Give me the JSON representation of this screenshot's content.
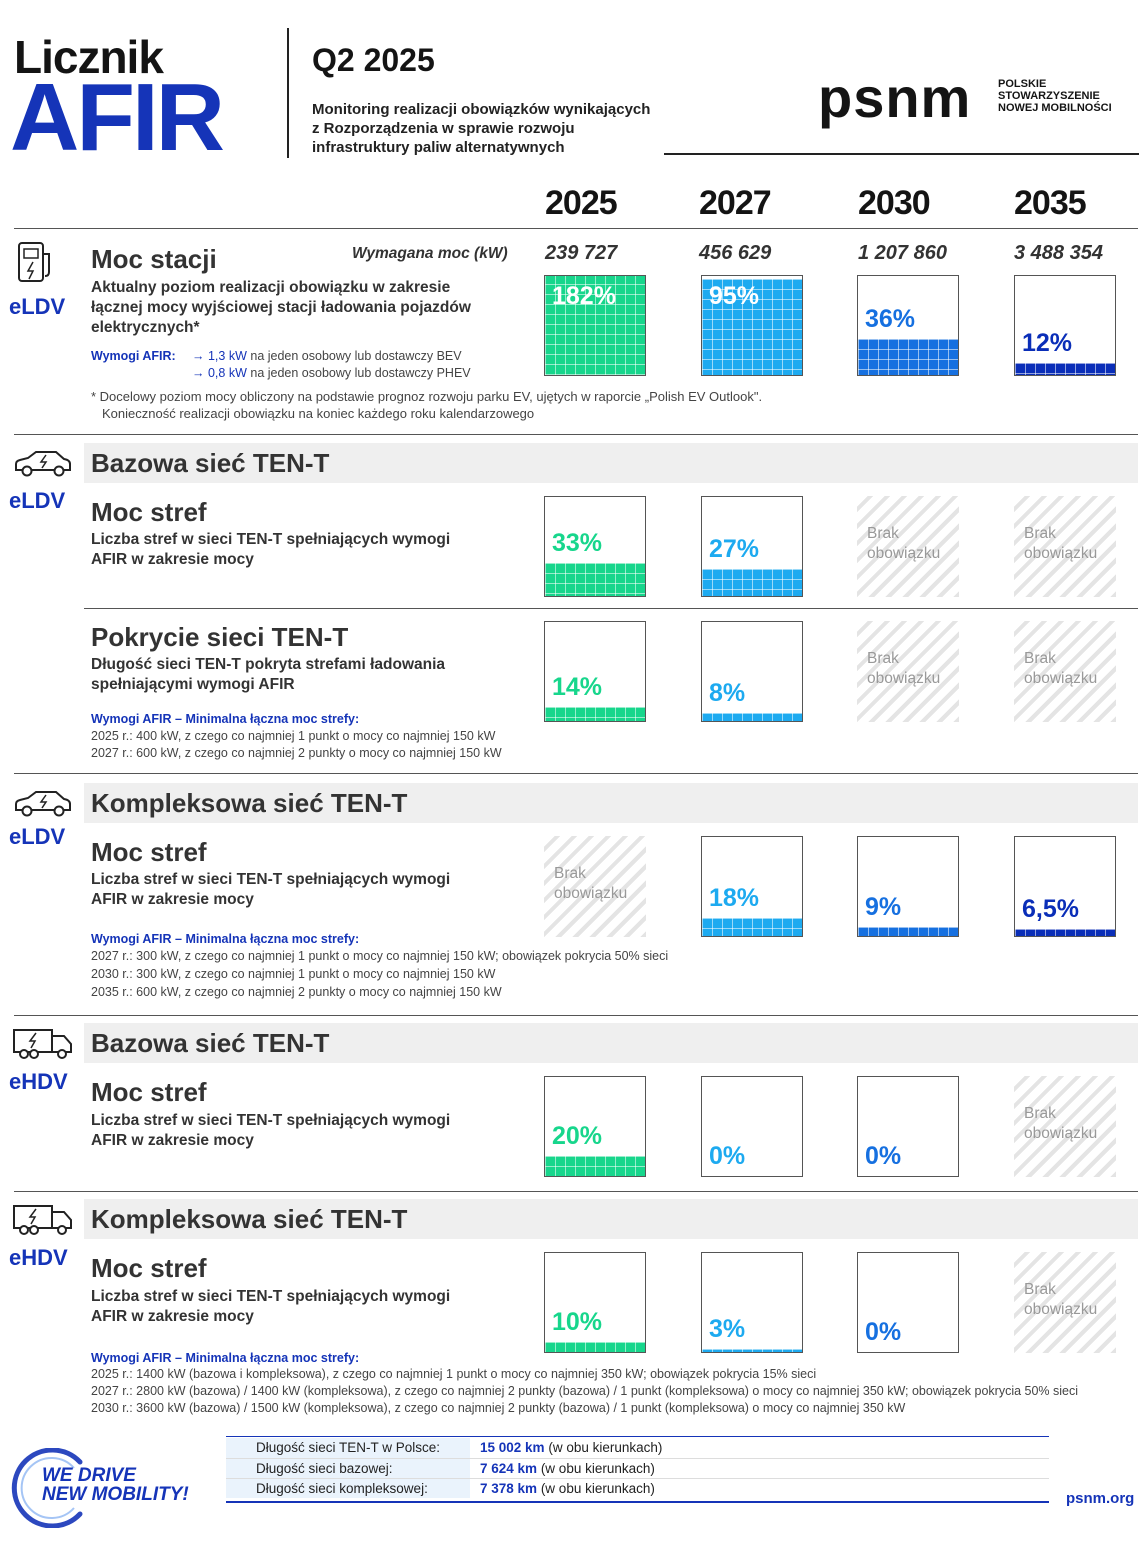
{
  "header": {
    "title_line1": "Licznik",
    "title_line2": "AFIR",
    "quarter": "Q2 2025",
    "subtitle": "Monitoring realizacji obowiązków wynikających z Rozporządzenia w sprawie rozwoju infrastruktury paliw alternatywnych",
    "logo": "psnm",
    "logo_sub": [
      "POLSKIE",
      "STOWARZYSZENIE",
      "NOWEJ MOBILNOŚCI"
    ]
  },
  "years": [
    "2025",
    "2027",
    "2030",
    "2035"
  ],
  "colors": {
    "c2025": "#17d68c",
    "c2027": "#1daaf0",
    "c2030": "#1670e0",
    "c2035": "#0a2eb8",
    "brand": "#1534b8"
  },
  "section_moc_stacji": {
    "category": "eLDV",
    "title": "Moc stacji",
    "required_label": "Wymagana moc (kW)",
    "required_values": [
      "239 727",
      "456 629",
      "1 207 860",
      "3 488 354"
    ],
    "desc": "Aktualny poziom realizacji obowiązku w zakresie łącznej mocy wyjściowej stacji ładowania pojazdów elektrycznych*",
    "req_label": "Wymogi AFIR:",
    "req1_val": "1,3 kW",
    "req1_text": "na jeden osobowy lub dostawczy BEV",
    "req2_val": "0,8 kW",
    "req2_text": "na jeden osobowy lub dostawczy PHEV",
    "note1": "* Docelowy poziom mocy obliczony na podstawie prognoz rozwoju parku EV, ujętych w raporcie „Polish EV Outlook\".",
    "note2": "Konieczność realizacji obowiązku na koniec każdego roku kalendarzowego"
  },
  "band1": {
    "title": "Bazowa sieć TEN-T",
    "category": "eLDV"
  },
  "moc_stref_1": {
    "title": "Moc stref",
    "desc": "Liczba stref w sieci TEN-T spełniających wymogi AFIR w zakresie mocy"
  },
  "pokrycie": {
    "title": "Pokrycie sieci TEN-T",
    "desc": "Długość sieci TEN-T pokryta strefami ładowania spełniającymi wymogi AFIR",
    "req_title": "Wymogi AFIR – Minimalna łączna moc strefy:",
    "req_lines": [
      "2025 r.: 400 kW, z czego co najmniej 1 punkt o mocy co najmniej 150 kW",
      "2027 r.: 600 kW, z czego co najmniej 2 punkty o mocy co najmniej 150 kW"
    ]
  },
  "band2": {
    "title": "Kompleksowa sieć TEN-T",
    "category": "eLDV"
  },
  "moc_stref_2": {
    "title": "Moc stref",
    "desc": "Liczba stref w sieci TEN-T spełniających wymogi AFIR w zakresie mocy",
    "req_title": "Wymogi AFIR – Minimalna łączna moc strefy:",
    "req_lines": [
      "2027 r.: 300 kW, z czego co najmniej 1 punkt o mocy co najmniej 150 kW; obowiązek pokrycia 50% sieci",
      "2030 r.: 300 kW, z czego co najmniej 1 punkt o mocy co najmniej 150 kW",
      "2035 r.: 600 kW, z czego co najmniej 2 punkty o mocy co najmniej 150 kW"
    ]
  },
  "band3": {
    "title": "Bazowa sieć TEN-T",
    "category": "eHDV"
  },
  "moc_stref_3": {
    "title": "Moc stref",
    "desc": "Liczba stref w sieci TEN-T spełniających wymogi AFIR w zakresie mocy"
  },
  "band4": {
    "title": "Kompleksowa sieć TEN-T",
    "category": "eHDV"
  },
  "moc_stref_4": {
    "title": "Moc stref",
    "desc": "Liczba stref w sieci TEN-T spełniających wymogi AFIR w zakresie mocy",
    "req_title": "Wymogi AFIR – Minimalna łączna moc strefy:",
    "req_lines": [
      "2025 r.: 1400 kW (bazowa i kompleksowa), z czego co najmniej 1 punkt o mocy co najmniej 350 kW; obowiązek pokrycia 15% sieci",
      "2027 r.: 2800 kW (bazowa) / 1400 kW (kompleksowa), z czego co najmniej 2 punkty (bazowa) / 1 punkt (kompleksowa) o mocy co najmniej 350 kW; obowiązek pokrycia  50% sieci",
      "2030 r.: 3600 kW (bazowa) / 1500 kW (kompleksowa), z czego co najmniej 2 punkty (bazowa) / 1 punkt (kompleksowa) o mocy co najmniej 350 kW"
    ]
  },
  "no_obligation": "Brak obowiązku",
  "chart_data": [
    {
      "type": "bar",
      "name": "Moc stacji (eLDV)",
      "categories": [
        "2025",
        "2027",
        "2030",
        "2035"
      ],
      "labels": [
        "182%",
        "95%",
        "36%",
        "12%"
      ],
      "values": [
        182,
        95,
        36,
        12
      ]
    },
    {
      "type": "bar",
      "name": "Bazowa sieć TEN-T – Moc stref (eLDV)",
      "categories": [
        "2025",
        "2027",
        "2030",
        "2035"
      ],
      "labels": [
        "33%",
        "27%",
        null,
        null
      ],
      "values": [
        33,
        27,
        null,
        null
      ]
    },
    {
      "type": "bar",
      "name": "Bazowa sieć TEN-T – Pokrycie sieci TEN-T (eLDV)",
      "categories": [
        "2025",
        "2027",
        "2030",
        "2035"
      ],
      "labels": [
        "14%",
        "8%",
        null,
        null
      ],
      "values": [
        14,
        8,
        null,
        null
      ]
    },
    {
      "type": "bar",
      "name": "Kompleksowa sieć TEN-T – Moc stref (eLDV)",
      "categories": [
        "2025",
        "2027",
        "2030",
        "2035"
      ],
      "labels": [
        null,
        "18%",
        "9%",
        "6,5%"
      ],
      "values": [
        null,
        18,
        9,
        6.5
      ]
    },
    {
      "type": "bar",
      "name": "Bazowa sieć TEN-T – Moc stref (eHDV)",
      "categories": [
        "2025",
        "2027",
        "2030",
        "2035"
      ],
      "labels": [
        "20%",
        "0%",
        "0%",
        null
      ],
      "values": [
        20,
        0,
        0,
        null
      ]
    },
    {
      "type": "bar",
      "name": "Kompleksowa sieć TEN-T – Moc stref (eHDV)",
      "categories": [
        "2025",
        "2027",
        "2030",
        "2035"
      ],
      "labels": [
        "10%",
        "3%",
        "0%",
        null
      ],
      "values": [
        10,
        3,
        0,
        null
      ]
    }
  ],
  "footer": {
    "rows": [
      {
        "label": "Długość sieci TEN-T w Polsce:",
        "value": "15 002 km",
        "note": "(w obu kierunkach)"
      },
      {
        "label": "Długość sieci bazowej:",
        "value": "7 624 km",
        "note": "(w obu kierunkach)"
      },
      {
        "label": "Długość sieci kompleksowej:",
        "value": "7 378 km",
        "note": "(w obu kierunkach)"
      }
    ],
    "slogan_line1": "WE DRIVE",
    "slogan_line2": "NEW MOBILITY!",
    "site": "psnm.org"
  }
}
